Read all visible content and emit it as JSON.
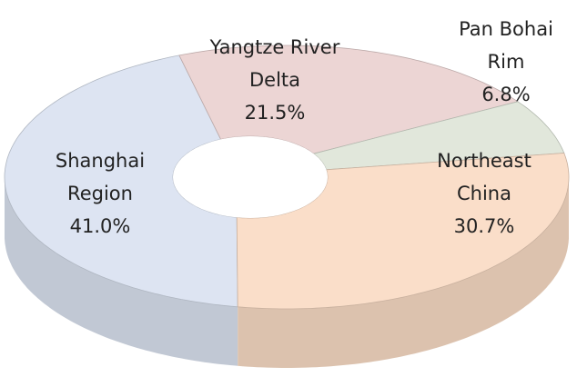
{
  "chart_data": {
    "type": "donut3d",
    "categories": [
      "Shanghai Region",
      "Yangtze River Delta",
      "Pan Bohai Rim",
      "Northeast China"
    ],
    "values": [
      41.0,
      21.5,
      6.8,
      30.7
    ],
    "value_labels": [
      "41.0%",
      "21.5%",
      "6.8%",
      "30.7%"
    ],
    "colors": [
      "#dbe3f1",
      "#ebd3d2",
      "#dfe6d9",
      "#fadcc6"
    ]
  }
}
